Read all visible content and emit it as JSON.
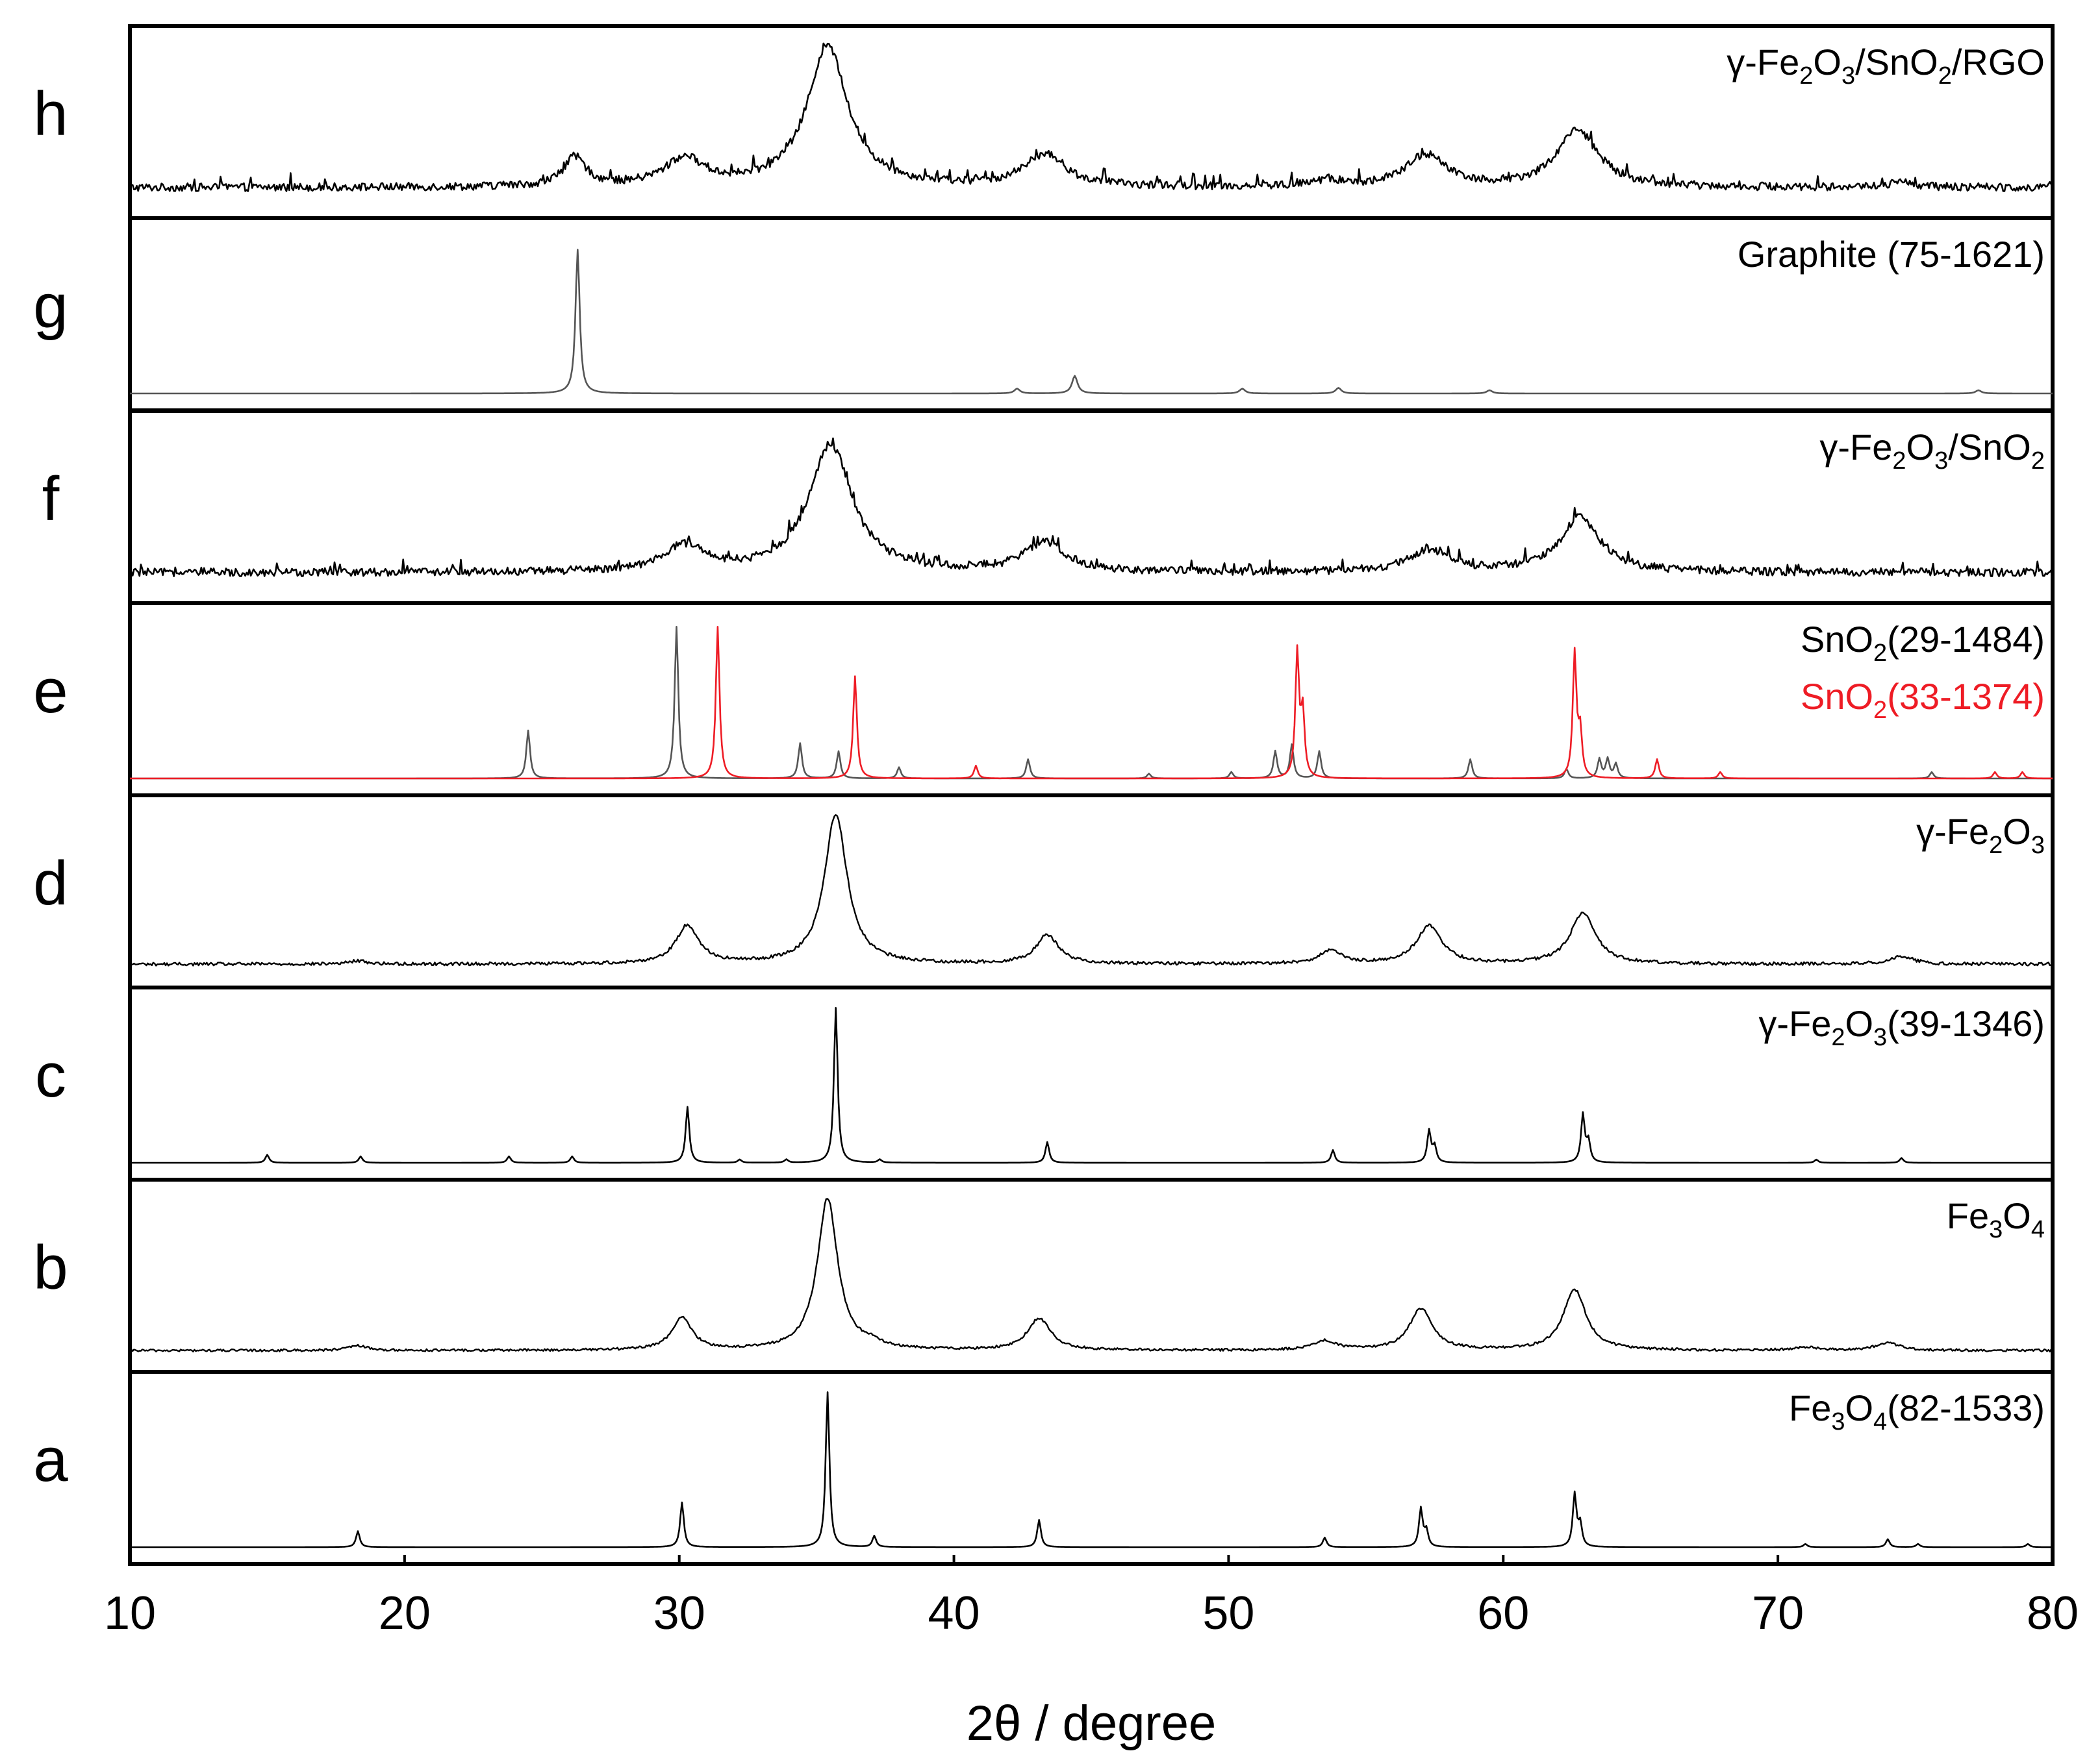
{
  "chart_data": {
    "type": "line",
    "title": "",
    "xlabel": "2θ / degree",
    "ylabel": "",
    "xlim": [
      10,
      80
    ],
    "xticks": [
      10,
      20,
      30,
      40,
      50,
      60,
      70,
      80
    ],
    "grid": false,
    "x_start": 10,
    "x_end": 80,
    "x_step": 0.05,
    "panels": [
      {
        "letter": "h",
        "style": "noisy",
        "labels": [
          {
            "parts": [
              [
                "γ-Fe",
                ""
              ],
              [
                "2",
                "sub"
              ],
              [
                "O",
                ""
              ],
              [
                "3",
                "sub"
              ],
              [
                "/SnO",
                ""
              ],
              [
                "2",
                "sub"
              ],
              [
                "/RGO",
                ""
              ]
            ],
            "color": "#000000"
          }
        ],
        "series": [
          {
            "name": "γ-Fe2O3/SnO2/RGO",
            "color": "#000000",
            "baseline": 0.06,
            "noise": 0.05,
            "peaks": [
              [
                26.2,
                0.18,
                0.5
              ],
              [
                30.2,
                0.17,
                0.9
              ],
              [
                35.4,
                0.88,
                0.9
              ],
              [
                43.3,
                0.2,
                0.9
              ],
              [
                53.6,
                0.04,
                0.6
              ],
              [
                57.2,
                0.2,
                0.9
              ],
              [
                62.7,
                0.36,
                0.9
              ],
              [
                74.5,
                0.03,
                0.6
              ]
            ]
          }
        ]
      },
      {
        "letter": "g",
        "style": "smooth",
        "labels": [
          {
            "parts": [
              [
                "Graphite (75-1621)",
                ""
              ]
            ],
            "color": "#000000"
          }
        ],
        "series": [
          {
            "name": "Graphite (75-1621)",
            "color": "#555555",
            "baseline": 0.0,
            "noise": 0.0,
            "peaks": [
              [
                26.3,
                0.9,
                0.09
              ],
              [
                42.3,
                0.03,
                0.12
              ],
              [
                44.4,
                0.11,
                0.12
              ],
              [
                50.5,
                0.03,
                0.12
              ],
              [
                54.0,
                0.035,
                0.12
              ],
              [
                59.5,
                0.02,
                0.12
              ],
              [
                77.3,
                0.02,
                0.12
              ]
            ]
          }
        ]
      },
      {
        "letter": "f",
        "style": "noisy",
        "labels": [
          {
            "parts": [
              [
                "γ-Fe",
                ""
              ],
              [
                "2",
                "sub"
              ],
              [
                "O",
                ""
              ],
              [
                "3",
                "sub"
              ],
              [
                "/SnO",
                ""
              ],
              [
                "2",
                "sub"
              ]
            ],
            "color": "#000000"
          }
        ],
        "series": [
          {
            "name": "γ-Fe2O3/SnO2",
            "color": "#000000",
            "baseline": 0.06,
            "noise": 0.05,
            "peaks": [
              [
                30.2,
                0.16,
                0.9
              ],
              [
                35.5,
                0.8,
                0.95
              ],
              [
                43.3,
                0.18,
                0.9
              ],
              [
                57.3,
                0.14,
                0.9
              ],
              [
                62.8,
                0.34,
                0.9
              ]
            ]
          }
        ]
      },
      {
        "letter": "e",
        "style": "smooth",
        "labels": [
          {
            "parts": [
              [
                "SnO",
                ""
              ],
              [
                "2",
                "sub"
              ],
              [
                "(29-1484)",
                ""
              ]
            ],
            "color": "#000000"
          },
          {
            "parts": [
              [
                "SnO",
                ""
              ],
              [
                "2",
                "sub"
              ],
              [
                "(33-1374)",
                ""
              ]
            ],
            "color": "#ee1c25"
          }
        ],
        "series": [
          {
            "name": "SnO2(29-1484)",
            "color": "#555555",
            "baseline": 0.0,
            "noise": 0.0,
            "peaks": [
              [
                24.5,
                0.3,
                0.08
              ],
              [
                29.9,
                0.95,
                0.08
              ],
              [
                34.4,
                0.22,
                0.08
              ],
              [
                35.8,
                0.17,
                0.08
              ],
              [
                38.0,
                0.07,
                0.08
              ],
              [
                42.7,
                0.12,
                0.08
              ],
              [
                47.1,
                0.03,
                0.08
              ],
              [
                50.1,
                0.04,
                0.08
              ],
              [
                51.7,
                0.17,
                0.08
              ],
              [
                52.3,
                0.21,
                0.08
              ],
              [
                53.3,
                0.17,
                0.08
              ],
              [
                58.8,
                0.12,
                0.08
              ],
              [
                62.3,
                0.06,
                0.08
              ],
              [
                63.5,
                0.12,
                0.08
              ],
              [
                63.8,
                0.12,
                0.08
              ],
              [
                64.1,
                0.09,
                0.08
              ],
              [
                75.6,
                0.04,
                0.08
              ]
            ]
          },
          {
            "name": "SnO2(33-1374)",
            "color": "#ee1c25",
            "baseline": 0.0,
            "noise": 0.0,
            "peaks": [
              [
                31.4,
                0.95,
                0.08
              ],
              [
                36.4,
                0.64,
                0.08
              ],
              [
                40.8,
                0.08,
                0.08
              ],
              [
                52.5,
                0.78,
                0.08
              ],
              [
                52.7,
                0.4,
                0.08
              ],
              [
                62.6,
                0.78,
                0.08
              ],
              [
                62.8,
                0.28,
                0.08
              ],
              [
                65.6,
                0.12,
                0.08
              ],
              [
                67.9,
                0.04,
                0.08
              ],
              [
                77.9,
                0.04,
                0.08
              ],
              [
                78.9,
                0.04,
                0.08
              ]
            ]
          }
        ]
      },
      {
        "letter": "d",
        "style": "noisy-light",
        "labels": [
          {
            "parts": [
              [
                "γ-Fe",
                ""
              ],
              [
                "2",
                "sub"
              ],
              [
                "O",
                ""
              ],
              [
                "3",
                "sub"
              ]
            ],
            "color": "#000000"
          }
        ],
        "series": [
          {
            "name": "γ-Fe2O3",
            "color": "#000000",
            "baseline": 0.03,
            "noise": 0.02,
            "peaks": [
              [
                18.3,
                0.02,
                0.4
              ],
              [
                30.3,
                0.24,
                0.5
              ],
              [
                35.7,
                0.94,
                0.5
              ],
              [
                43.4,
                0.18,
                0.5
              ],
              [
                53.7,
                0.08,
                0.5
              ],
              [
                57.3,
                0.24,
                0.55
              ],
              [
                62.9,
                0.32,
                0.55
              ],
              [
                74.5,
                0.05,
                0.5
              ]
            ]
          }
        ]
      },
      {
        "letter": "c",
        "style": "smooth",
        "labels": [
          {
            "parts": [
              [
                "γ-Fe",
                ""
              ],
              [
                "2",
                "sub"
              ],
              [
                "O",
                ""
              ],
              [
                "3",
                "sub"
              ],
              [
                "(39-1346)",
                ""
              ]
            ],
            "color": "#000000"
          }
        ],
        "series": [
          {
            "name": "γ-Fe2O3(39-1346)",
            "color": "#000000",
            "baseline": 0.0,
            "noise": 0.0,
            "peaks": [
              [
                15.0,
                0.05,
                0.08
              ],
              [
                18.4,
                0.04,
                0.08
              ],
              [
                23.8,
                0.04,
                0.08
              ],
              [
                26.1,
                0.04,
                0.08
              ],
              [
                30.3,
                0.35,
                0.08
              ],
              [
                32.2,
                0.02,
                0.08
              ],
              [
                33.9,
                0.02,
                0.08
              ],
              [
                35.7,
                0.97,
                0.08
              ],
              [
                37.3,
                0.02,
                0.08
              ],
              [
                43.4,
                0.13,
                0.08
              ],
              [
                53.8,
                0.08,
                0.08
              ],
              [
                57.3,
                0.2,
                0.08
              ],
              [
                57.5,
                0.1,
                0.08
              ],
              [
                62.9,
                0.3,
                0.08
              ],
              [
                63.1,
                0.13,
                0.08
              ],
              [
                71.4,
                0.02,
                0.08
              ],
              [
                74.5,
                0.03,
                0.08
              ]
            ]
          }
        ]
      },
      {
        "letter": "b",
        "style": "noisy-light",
        "labels": [
          {
            "parts": [
              [
                "Fe",
                ""
              ],
              [
                "3",
                "sub"
              ],
              [
                "O",
                ""
              ],
              [
                "4",
                "sub"
              ]
            ],
            "color": "#000000"
          }
        ],
        "series": [
          {
            "name": "Fe3O4",
            "color": "#000000",
            "baseline": 0.02,
            "noise": 0.015,
            "peaks": [
              [
                18.3,
                0.03,
                0.4
              ],
              [
                30.1,
                0.2,
                0.45
              ],
              [
                35.4,
                0.95,
                0.45
              ],
              [
                37.0,
                0.03,
                0.4
              ],
              [
                43.1,
                0.2,
                0.5
              ],
              [
                53.5,
                0.06,
                0.5
              ],
              [
                57.0,
                0.26,
                0.5
              ],
              [
                62.6,
                0.38,
                0.5
              ],
              [
                71.0,
                0.02,
                0.5
              ],
              [
                74.0,
                0.05,
                0.5
              ]
            ]
          }
        ]
      },
      {
        "letter": "a",
        "style": "smooth",
        "labels": [
          {
            "parts": [
              [
                "Fe",
                ""
              ],
              [
                "3",
                "sub"
              ],
              [
                "O",
                ""
              ],
              [
                "4",
                "sub"
              ],
              [
                "(82-1533)",
                ""
              ]
            ],
            "color": "#000000"
          }
        ],
        "series": [
          {
            "name": "Fe3O4(82-1533)",
            "color": "#000000",
            "baseline": 0.0,
            "noise": 0.0,
            "peaks": [
              [
                18.3,
                0.1,
                0.08
              ],
              [
                30.1,
                0.28,
                0.08
              ],
              [
                35.4,
                0.97,
                0.08
              ],
              [
                37.1,
                0.07,
                0.08
              ],
              [
                43.1,
                0.17,
                0.08
              ],
              [
                53.5,
                0.06,
                0.08
              ],
              [
                57.0,
                0.24,
                0.08
              ],
              [
                57.2,
                0.1,
                0.08
              ],
              [
                62.6,
                0.33,
                0.08
              ],
              [
                62.8,
                0.14,
                0.08
              ],
              [
                71.0,
                0.02,
                0.08
              ],
              [
                74.0,
                0.05,
                0.08
              ],
              [
                75.1,
                0.02,
                0.08
              ],
              [
                79.1,
                0.02,
                0.08
              ]
            ]
          }
        ]
      }
    ]
  }
}
